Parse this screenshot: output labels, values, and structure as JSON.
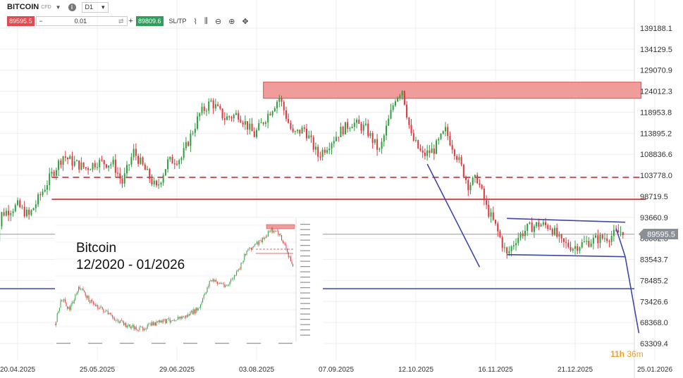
{
  "toolbar": {
    "symbol": "BITCOIN",
    "symbol_type": "CFD",
    "timeframe": "D1",
    "sell_price": "89595.5",
    "quantity": "0.01",
    "minus": "−",
    "plus": "+",
    "buy_price": "89809.6",
    "sltp_label": "SL/TP"
  },
  "annotation": {
    "title_line1": "Bitcoin",
    "title_line2": "12/2020 - 01/2026"
  },
  "countdown": {
    "hours": "11h",
    "minutes": "36m"
  },
  "colors": {
    "up": "#2e9e3e",
    "down": "#e0353b",
    "zone": "#f09c9a",
    "trend": "#3f48a8",
    "current": "#999999"
  },
  "chart_data": {
    "type": "candlestick",
    "y_axis_ticks": [
      "139188.1",
      "134129.5",
      "129070.9",
      "124012.3",
      "118953.8",
      "113895.2",
      "108836.6",
      "103778.0",
      "98719.5",
      "93660.9",
      "88602.3",
      "83543.7",
      "78485.2",
      "73426.6",
      "68368.0",
      "63309.4"
    ],
    "x_axis_ticks": [
      "20.04.2025",
      "25.05.2025",
      "29.06.2025",
      "03.08.2025",
      "07.09.2025",
      "12.10.2025",
      "16.11.2025",
      "21.12.2025",
      "25.01.2026"
    ],
    "current_price": 89595.5,
    "ylim": [
      60000,
      141000
    ],
    "resistance_zone": {
      "low": 122300,
      "high": 126200,
      "from": "06.08.2025",
      "to": "19.01.2026"
    },
    "dashed_level": {
      "value": 103300,
      "from": "05.05.2025",
      "to": "19.01.2026"
    },
    "solid_level": {
      "value": 98000,
      "from": "05.05.2025",
      "to": "21.01.2026"
    },
    "lower_trendline": {
      "value": 76500
    },
    "wedge_upper": [
      [
        "21.11.2025",
        93400
      ],
      [
        "12.01.2026",
        92500
      ]
    ],
    "wedge_lower": [
      [
        "21.11.2025",
        84700
      ],
      [
        "12.01.2026",
        84200
      ]
    ],
    "fall_line": [
      [
        "17.10.2025",
        106500
      ],
      [
        "09.11.2025",
        81700
      ]
    ],
    "projection": [
      [
        "08.01.2026",
        91000
      ],
      [
        "12.01.2026",
        84200
      ],
      [
        "18.01.2026",
        65800
      ]
    ],
    "series": [
      {
        "name": "",
        "from": "09.04.2025",
        "to": "11.01.2026",
        "anchors": [
          [
            "09.04.2025",
            83500
          ],
          [
            "13.04.2025",
            94500
          ],
          [
            "20.04.2025",
            96500
          ],
          [
            "25.04.2025",
            94000
          ],
          [
            "05.05.2025",
            104000
          ],
          [
            "10.05.2025",
            108500
          ],
          [
            "14.05.2025",
            107000
          ],
          [
            "20.05.2025",
            105500
          ],
          [
            "25.05.2025",
            107000
          ],
          [
            "01.06.2025",
            106500
          ],
          [
            "05.06.2025",
            102000
          ],
          [
            "10.06.2025",
            109500
          ],
          [
            "15.06.2025",
            105000
          ],
          [
            "20.06.2025",
            100500
          ],
          [
            "25.06.2025",
            107000
          ],
          [
            "01.07.2025",
            108000
          ],
          [
            "09.07.2025",
            118500
          ],
          [
            "14.07.2025",
            121500
          ],
          [
            "20.07.2025",
            117500
          ],
          [
            "26.07.2025",
            118500
          ],
          [
            "02.08.2025",
            113500
          ],
          [
            "08.08.2025",
            118500
          ],
          [
            "13.08.2025",
            122500
          ],
          [
            "19.08.2025",
            113500
          ],
          [
            "24.08.2025",
            115000
          ],
          [
            "30.08.2025",
            108500
          ],
          [
            "04.09.2025",
            111500
          ],
          [
            "09.09.2025",
            114500
          ],
          [
            "14.09.2025",
            116500
          ],
          [
            "20.09.2025",
            115000
          ],
          [
            "26.09.2025",
            109500
          ],
          [
            "03.10.2025",
            122500
          ],
          [
            "06.10.2025",
            124500
          ],
          [
            "10.10.2025",
            113000
          ],
          [
            "15.10.2025",
            108500
          ],
          [
            "20.10.2025",
            110000
          ],
          [
            "25.10.2025",
            114500
          ],
          [
            "30.10.2025",
            108500
          ],
          [
            "04.11.2025",
            101500
          ],
          [
            "08.11.2025",
            103000
          ],
          [
            "12.11.2025",
            96000
          ],
          [
            "16.11.2025",
            91500
          ],
          [
            "21.11.2025",
            84500
          ],
          [
            "25.11.2025",
            88500
          ],
          [
            "30.11.2025",
            91000
          ],
          [
            "05.12.2025",
            92000
          ],
          [
            "10.12.2025",
            91500
          ],
          [
            "15.12.2025",
            87500
          ],
          [
            "20.12.2025",
            86500
          ],
          [
            "25.12.2025",
            87500
          ],
          [
            "31.12.2025",
            88500
          ],
          [
            "05.01.2026",
            89000
          ],
          [
            "11.01.2026",
            90500
          ]
        ]
      }
    ]
  }
}
